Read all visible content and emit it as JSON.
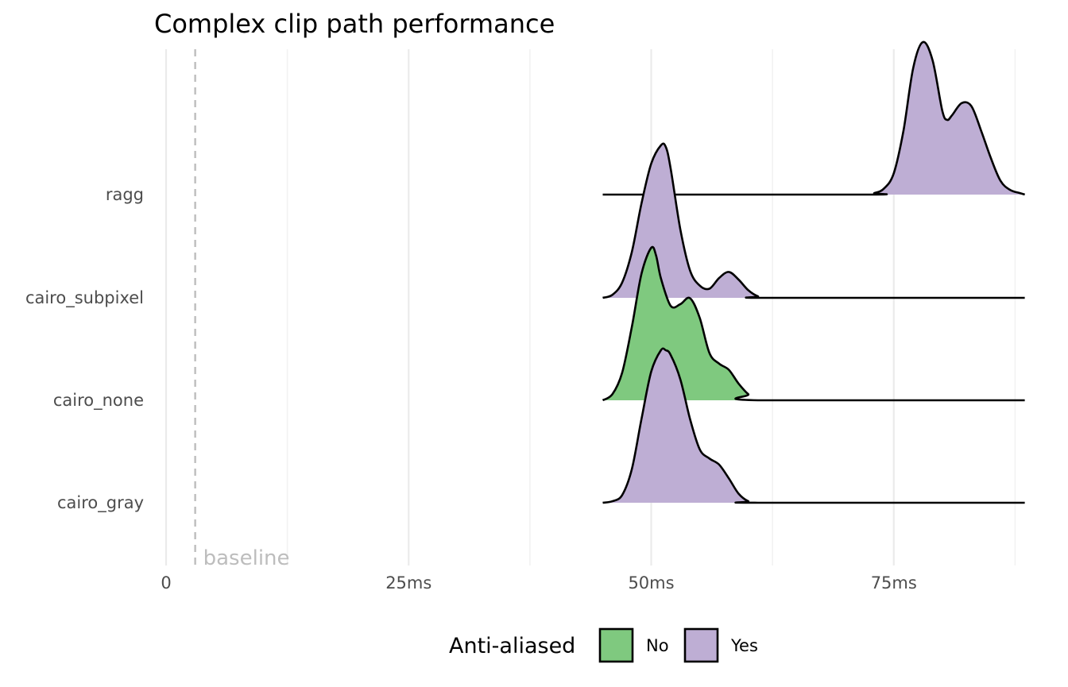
{
  "chart_data": {
    "type": "ridgeline",
    "title": "Complex clip path performance",
    "xlabel": "",
    "ylabel": "",
    "x_unit": "ms",
    "xlim": [
      0,
      88.5
    ],
    "x_major_ticks": [
      0,
      25,
      50,
      75
    ],
    "x_tick_labels": [
      "0",
      "25ms",
      "50ms",
      "75ms"
    ],
    "x_minor_gridlines": [
      12.5,
      37.5,
      62.5,
      87.5
    ],
    "grid": true,
    "categories": [
      "cairo_gray",
      "cairo_none",
      "cairo_subpixel",
      "ragg"
    ],
    "baseline": {
      "value": 3,
      "label": "baseline",
      "color": "#bdbdbd"
    },
    "legend": {
      "title": "Anti-aliased",
      "position": "bottom",
      "entries": [
        {
          "label": "No",
          "color": "#7fc97f"
        },
        {
          "label": "Yes",
          "color": "#beaed4"
        }
      ]
    },
    "series": [
      {
        "category": "cairo_gray",
        "anti_aliased": "Yes",
        "color": "#beaed4",
        "x_range": [
          45,
          88.5
        ],
        "points": [
          [
            45,
            0
          ],
          [
            46,
            0.01
          ],
          [
            47,
            0.05
          ],
          [
            48,
            0.22
          ],
          [
            49,
            0.55
          ],
          [
            50,
            0.86
          ],
          [
            51,
            1.0
          ],
          [
            51.5,
            1.0
          ],
          [
            52,
            0.97
          ],
          [
            53,
            0.81
          ],
          [
            54,
            0.55
          ],
          [
            55,
            0.35
          ],
          [
            56,
            0.29
          ],
          [
            57,
            0.25
          ],
          [
            58,
            0.16
          ],
          [
            59,
            0.06
          ],
          [
            60,
            0.01
          ],
          [
            61,
            0
          ],
          [
            88.5,
            0
          ]
        ]
      },
      {
        "category": "cairo_none",
        "anti_aliased": "No",
        "color": "#7fc97f",
        "x_range": [
          45,
          88.5
        ],
        "points": [
          [
            45,
            0
          ],
          [
            46,
            0.04
          ],
          [
            47,
            0.18
          ],
          [
            48,
            0.48
          ],
          [
            49,
            0.83
          ],
          [
            50,
            1.0
          ],
          [
            50.5,
            0.95
          ],
          [
            51,
            0.8
          ],
          [
            52,
            0.62
          ],
          [
            53,
            0.63
          ],
          [
            54,
            0.67
          ],
          [
            55,
            0.54
          ],
          [
            56,
            0.31
          ],
          [
            57,
            0.24
          ],
          [
            58,
            0.2
          ],
          [
            59,
            0.11
          ],
          [
            60,
            0.04
          ],
          [
            61,
            0
          ],
          [
            88.5,
            0
          ]
        ]
      },
      {
        "category": "cairo_subpixel",
        "anti_aliased": "Yes",
        "color": "#beaed4",
        "x_range": [
          45,
          88.5
        ],
        "points": [
          [
            45,
            0
          ],
          [
            46,
            0.02
          ],
          [
            47,
            0.1
          ],
          [
            48,
            0.3
          ],
          [
            49,
            0.62
          ],
          [
            50,
            0.88
          ],
          [
            51,
            1.0
          ],
          [
            51.5,
            0.99
          ],
          [
            52,
            0.85
          ],
          [
            53,
            0.45
          ],
          [
            54,
            0.18
          ],
          [
            55,
            0.08
          ],
          [
            56,
            0.06
          ],
          [
            57,
            0.13
          ],
          [
            58,
            0.17
          ],
          [
            59,
            0.12
          ],
          [
            60,
            0.05
          ],
          [
            61,
            0.01
          ],
          [
            62,
            0
          ],
          [
            88.5,
            0
          ]
        ]
      },
      {
        "category": "ragg",
        "anti_aliased": "Yes",
        "color": "#beaed4",
        "x_range": [
          45,
          88.5
        ],
        "points": [
          [
            45,
            0
          ],
          [
            72,
            0
          ],
          [
            73,
            0.01
          ],
          [
            74,
            0.04
          ],
          [
            75,
            0.14
          ],
          [
            76,
            0.42
          ],
          [
            77,
            0.83
          ],
          [
            78,
            1.0
          ],
          [
            79,
            0.88
          ],
          [
            80,
            0.55
          ],
          [
            80.5,
            0.49
          ],
          [
            81,
            0.52
          ],
          [
            82,
            0.6
          ],
          [
            83,
            0.58
          ],
          [
            84,
            0.42
          ],
          [
            85,
            0.24
          ],
          [
            86,
            0.09
          ],
          [
            87,
            0.03
          ],
          [
            88,
            0.01
          ],
          [
            88.5,
            0
          ]
        ]
      }
    ]
  }
}
